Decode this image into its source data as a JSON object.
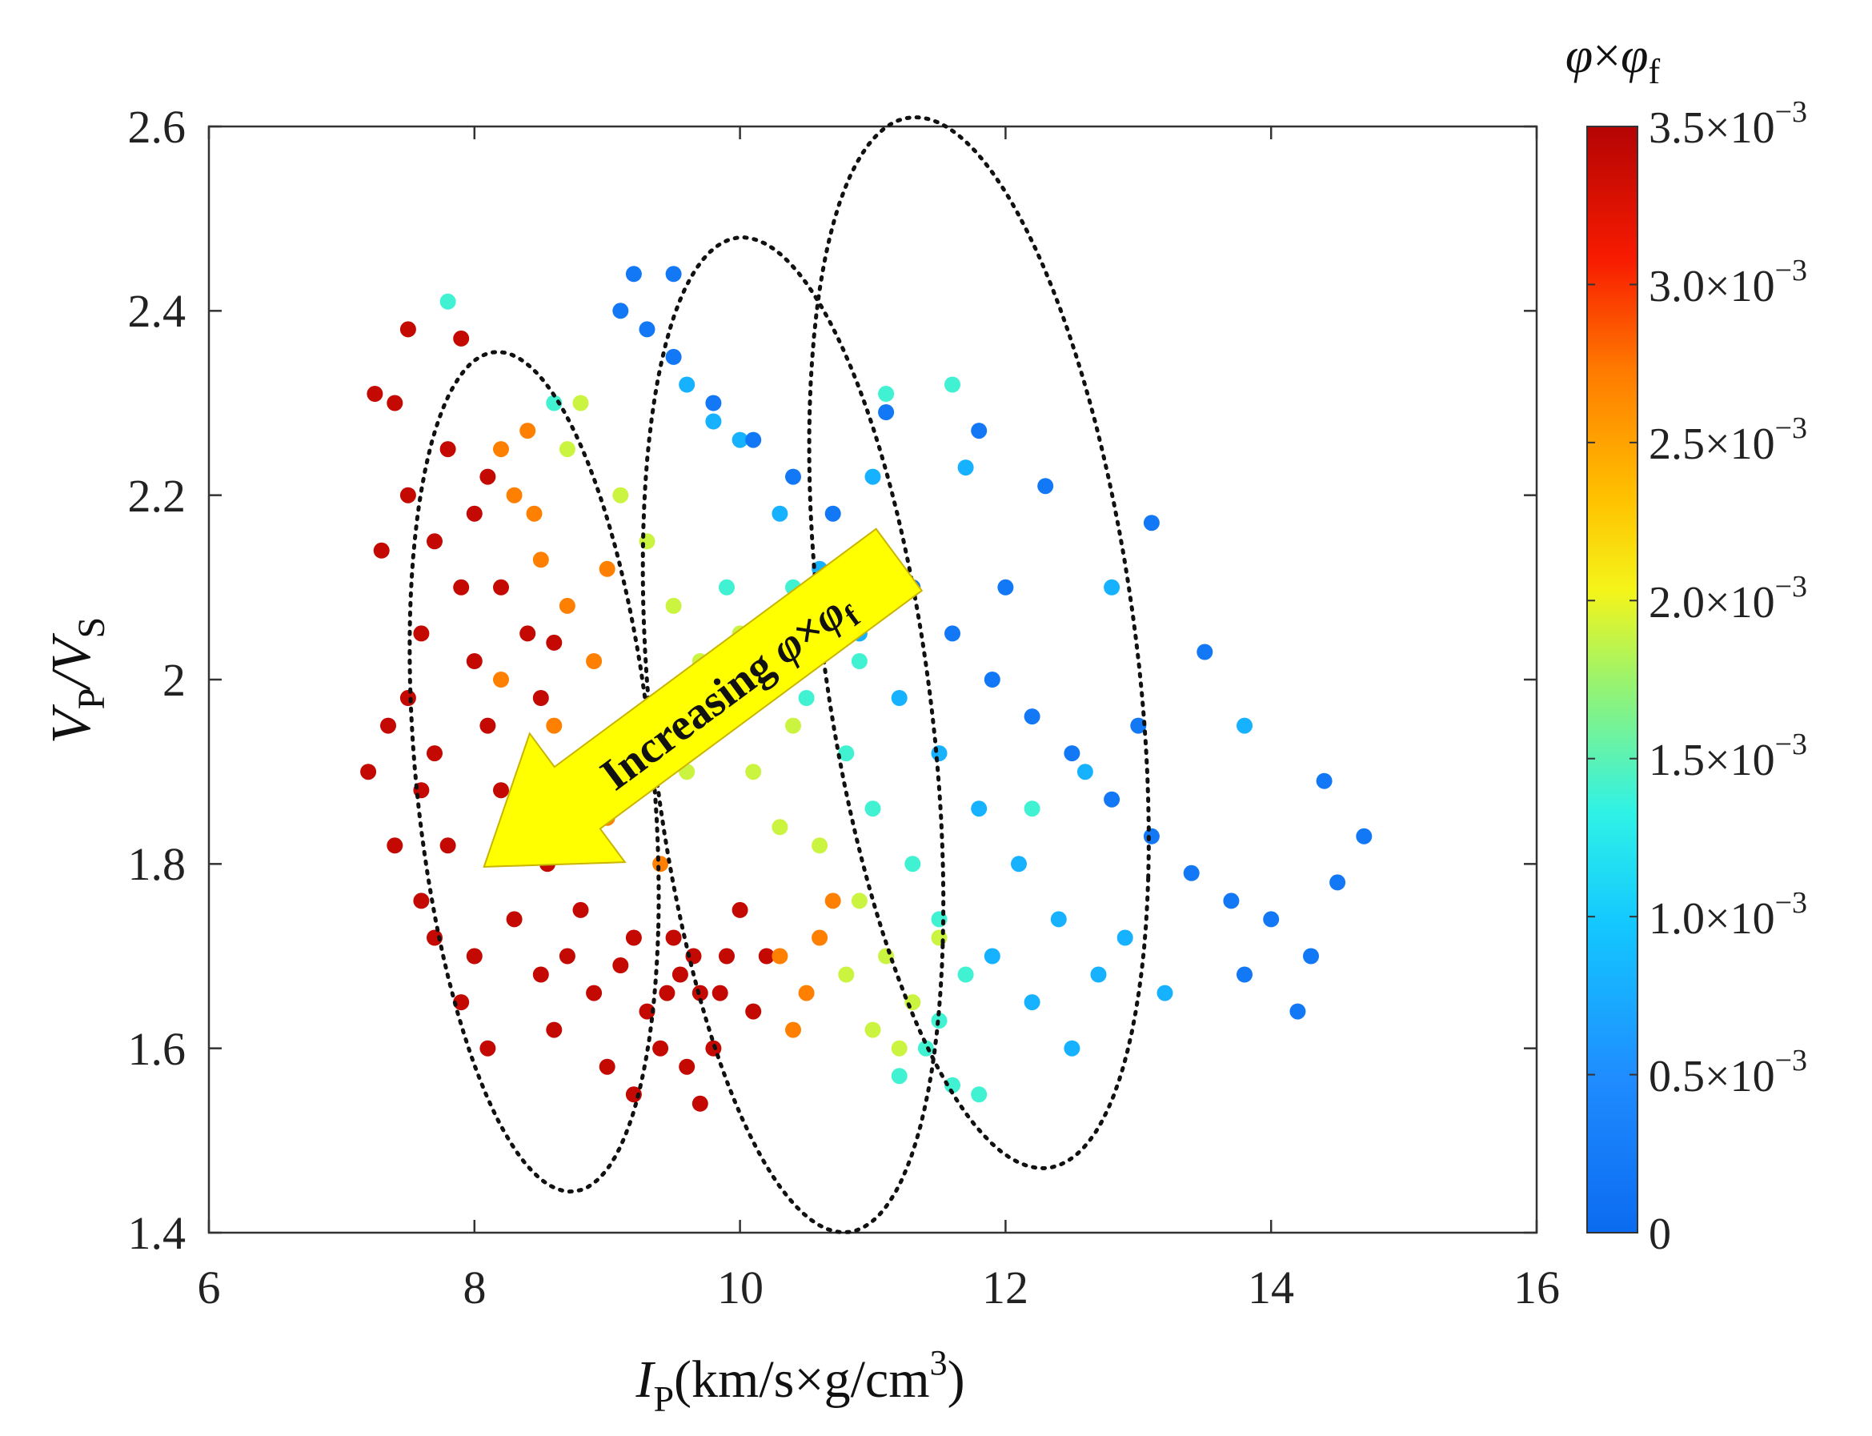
{
  "chart_data": {
    "type": "scatter",
    "title": "",
    "xlabel": {
      "main": "I",
      "sub": "P",
      "rest": "(km/s×g/cm",
      "sup": "3",
      "close": ")"
    },
    "ylabel": {
      "main1": "V",
      "sub1": "P",
      "slash": "/",
      "main2": "V",
      "sub2": "S"
    },
    "xlim": [
      6,
      16
    ],
    "ylim": [
      1.4,
      2.6
    ],
    "xticks": [
      6,
      8,
      10,
      12,
      14,
      16
    ],
    "yticks": [
      1.4,
      1.6,
      1.8,
      2,
      2.2,
      2.4,
      2.6
    ],
    "xtick_labels": [
      "6",
      "8",
      "10",
      "12",
      "14",
      "16"
    ],
    "ytick_labels": [
      "1.4",
      "1.6",
      "1.8",
      "2",
      "2.2",
      "2.4",
      "2.6"
    ],
    "grid": false,
    "colormap": "jet",
    "colorbar": {
      "title": {
        "phi1": "φ",
        "times": "×",
        "phi2": "φ",
        "sub": "f"
      },
      "range": [
        0,
        0.0035
      ],
      "ticks": [
        0,
        0.0005,
        0.001,
        0.0015,
        0.002,
        0.0025,
        0.003,
        0.0035
      ],
      "tick_labels": [
        {
          "mant": "0",
          "exp": ""
        },
        {
          "mant": "0.5×10",
          "exp": "−3"
        },
        {
          "mant": "1.0×10",
          "exp": "−3"
        },
        {
          "mant": "1.5×10",
          "exp": "−3"
        },
        {
          "mant": "2.0×10",
          "exp": "−3"
        },
        {
          "mant": "2.5×10",
          "exp": "−3"
        },
        {
          "mant": "3.0×10",
          "exp": "−3"
        },
        {
          "mant": "3.5×10",
          "exp": "−3"
        }
      ]
    },
    "annotation": {
      "text": "Increasing ",
      "phi1": "φ",
      "times": "×",
      "phi2": "φ",
      "sub": "f",
      "arrow_color": "#ffff00"
    },
    "ellipses": [
      {
        "name": "high-porosity-cluster",
        "center": [
          8.45,
          1.9
        ],
        "semi_axes_data": [
          0.95,
          0.43
        ],
        "direction": [
          1.0,
          -0.18
        ]
      },
      {
        "name": "mid-high-cluster",
        "center": [
          10.4,
          1.94
        ],
        "semi_axes_data": [
          1.15,
          0.5
        ],
        "direction": [
          1.0,
          -0.2
        ]
      },
      {
        "name": "low-porosity-cluster",
        "center": [
          11.8,
          2.04
        ],
        "semi_axes_data": [
          1.3,
          0.52
        ],
        "direction": [
          1.0,
          -0.2
        ]
      }
    ],
    "series": [
      {
        "name": "red-cluster-a",
        "phi_phif": 0.0034,
        "points": [
          [
            7.3,
            2.14
          ],
          [
            7.5,
            2.2
          ],
          [
            7.6,
            2.05
          ],
          [
            7.7,
            1.92
          ],
          [
            7.5,
            1.98
          ],
          [
            7.9,
            2.1
          ],
          [
            8.0,
            2.02
          ],
          [
            8.1,
            1.95
          ],
          [
            8.2,
            1.88
          ],
          [
            7.8,
            1.82
          ],
          [
            7.6,
            1.76
          ],
          [
            7.4,
            1.82
          ],
          [
            7.2,
            1.9
          ],
          [
            8.3,
            1.82
          ],
          [
            8.4,
            1.9
          ],
          [
            8.5,
            1.98
          ],
          [
            8.6,
            2.04
          ],
          [
            8.2,
            2.1
          ],
          [
            8.0,
            2.18
          ],
          [
            7.8,
            2.25
          ],
          [
            7.7,
            2.15
          ],
          [
            8.1,
            2.22
          ],
          [
            8.4,
            2.05
          ],
          [
            8.3,
            1.74
          ],
          [
            8.0,
            1.7
          ],
          [
            7.7,
            1.72
          ],
          [
            8.5,
            1.68
          ],
          [
            8.7,
            1.7
          ],
          [
            8.9,
            1.66
          ],
          [
            9.1,
            1.69
          ],
          [
            9.3,
            1.64
          ],
          [
            9.5,
            1.72
          ],
          [
            9.7,
            1.66
          ],
          [
            9.9,
            1.7
          ],
          [
            10.1,
            1.64
          ],
          [
            9.6,
            1.58
          ],
          [
            9.4,
            1.6
          ],
          [
            9.8,
            1.6
          ],
          [
            10.0,
            1.75
          ],
          [
            9.2,
            1.72
          ],
          [
            8.8,
            1.75
          ],
          [
            7.9,
            1.65
          ],
          [
            8.1,
            1.6
          ],
          [
            7.4,
            2.3
          ],
          [
            7.25,
            2.31
          ],
          [
            7.5,
            2.38
          ],
          [
            7.9,
            2.37
          ],
          [
            7.6,
            1.88
          ],
          [
            7.35,
            1.95
          ],
          [
            8.6,
            1.62
          ],
          [
            9.0,
            1.58
          ],
          [
            9.2,
            1.55
          ],
          [
            9.7,
            1.54
          ],
          [
            10.2,
            1.7
          ],
          [
            9.55,
            1.68
          ],
          [
            9.85,
            1.66
          ],
          [
            9.65,
            1.7
          ],
          [
            9.45,
            1.66
          ],
          [
            8.9,
            1.86
          ],
          [
            8.55,
            1.8
          ]
        ]
      },
      {
        "name": "orange-band",
        "phi_phif": 0.0027,
        "points": [
          [
            8.3,
            2.2
          ],
          [
            8.5,
            2.13
          ],
          [
            8.7,
            2.08
          ],
          [
            8.9,
            2.02
          ],
          [
            8.6,
            1.95
          ],
          [
            8.8,
            1.9
          ],
          [
            9.0,
            1.85
          ],
          [
            8.4,
            2.27
          ],
          [
            8.2,
            2.25
          ],
          [
            9.2,
            1.95
          ],
          [
            9.0,
            2.12
          ],
          [
            9.4,
            1.8
          ],
          [
            10.3,
            1.7
          ],
          [
            10.5,
            1.66
          ],
          [
            10.6,
            1.72
          ],
          [
            10.4,
            1.62
          ],
          [
            10.7,
            1.76
          ],
          [
            8.45,
            2.18
          ],
          [
            8.2,
            2.0
          ],
          [
            8.6,
            1.84
          ]
        ]
      },
      {
        "name": "yellow-green-band",
        "phi_phif": 0.0019,
        "points": [
          [
            9.3,
            2.15
          ],
          [
            9.5,
            2.08
          ],
          [
            9.7,
            2.02
          ],
          [
            9.9,
            1.96
          ],
          [
            10.1,
            1.9
          ],
          [
            10.3,
            1.84
          ],
          [
            10.6,
            1.82
          ],
          [
            10.9,
            1.76
          ],
          [
            11.1,
            1.7
          ],
          [
            11.3,
            1.65
          ],
          [
            10.8,
            1.68
          ],
          [
            11.0,
            1.62
          ],
          [
            9.1,
            2.2
          ],
          [
            9.6,
            1.9
          ],
          [
            10.0,
            2.05
          ],
          [
            10.4,
            1.95
          ],
          [
            11.5,
            1.72
          ],
          [
            11.2,
            1.6
          ],
          [
            8.7,
            2.25
          ],
          [
            8.8,
            2.3
          ]
        ]
      },
      {
        "name": "green-band",
        "phi_phif": 0.0014,
        "points": [
          [
            9.9,
            2.1
          ],
          [
            10.2,
            2.04
          ],
          [
            10.5,
            1.98
          ],
          [
            10.8,
            1.92
          ],
          [
            11.0,
            1.86
          ],
          [
            11.3,
            1.8
          ],
          [
            11.5,
            1.74
          ],
          [
            11.7,
            1.68
          ],
          [
            11.4,
            1.6
          ],
          [
            11.2,
            1.57
          ],
          [
            11.6,
            1.56
          ],
          [
            11.8,
            1.55
          ],
          [
            11.5,
            1.63
          ],
          [
            10.4,
            2.1
          ],
          [
            10.9,
            2.02
          ],
          [
            11.6,
            2.32
          ],
          [
            11.1,
            2.31
          ],
          [
            8.6,
            2.3
          ],
          [
            7.8,
            2.41
          ],
          [
            12.2,
            1.86
          ]
        ]
      },
      {
        "name": "cyan-band",
        "phi_phif": 0.0008,
        "points": [
          [
            10.3,
            2.18
          ],
          [
            10.6,
            2.12
          ],
          [
            10.9,
            2.05
          ],
          [
            11.2,
            1.98
          ],
          [
            11.5,
            1.92
          ],
          [
            11.8,
            1.86
          ],
          [
            12.1,
            1.8
          ],
          [
            12.4,
            1.74
          ],
          [
            12.7,
            1.68
          ],
          [
            12.5,
            1.6
          ],
          [
            12.2,
            1.65
          ],
          [
            11.9,
            1.7
          ],
          [
            12.9,
            1.72
          ],
          [
            13.2,
            1.66
          ],
          [
            9.6,
            2.32
          ],
          [
            9.8,
            2.28
          ],
          [
            10.0,
            2.26
          ],
          [
            11.7,
            2.23
          ],
          [
            12.8,
            2.1
          ],
          [
            13.8,
            1.95
          ],
          [
            11.0,
            2.22
          ],
          [
            12.6,
            1.9
          ]
        ]
      },
      {
        "name": "blue-band",
        "phi_phif": 0.0002,
        "points": [
          [
            9.1,
            2.4
          ],
          [
            9.3,
            2.38
          ],
          [
            9.5,
            2.35
          ],
          [
            9.8,
            2.3
          ],
          [
            10.1,
            2.26
          ],
          [
            10.4,
            2.22
          ],
          [
            10.7,
            2.18
          ],
          [
            11.0,
            2.14
          ],
          [
            11.3,
            2.1
          ],
          [
            11.6,
            2.05
          ],
          [
            11.9,
            2.0
          ],
          [
            12.2,
            1.96
          ],
          [
            12.5,
            1.92
          ],
          [
            12.8,
            1.87
          ],
          [
            13.1,
            1.83
          ],
          [
            13.4,
            1.79
          ],
          [
            13.7,
            1.76
          ],
          [
            14.0,
            1.74
          ],
          [
            14.3,
            1.7
          ],
          [
            14.5,
            1.78
          ],
          [
            14.7,
            1.83
          ],
          [
            14.4,
            1.89
          ],
          [
            13.5,
            2.03
          ],
          [
            13.1,
            2.17
          ],
          [
            12.3,
            2.21
          ],
          [
            11.8,
            2.27
          ],
          [
            11.1,
            2.29
          ],
          [
            13.0,
            1.95
          ],
          [
            12.0,
            2.1
          ],
          [
            14.2,
            1.64
          ],
          [
            13.8,
            1.68
          ],
          [
            9.5,
            2.44
          ],
          [
            9.2,
            2.44
          ]
        ]
      }
    ]
  }
}
